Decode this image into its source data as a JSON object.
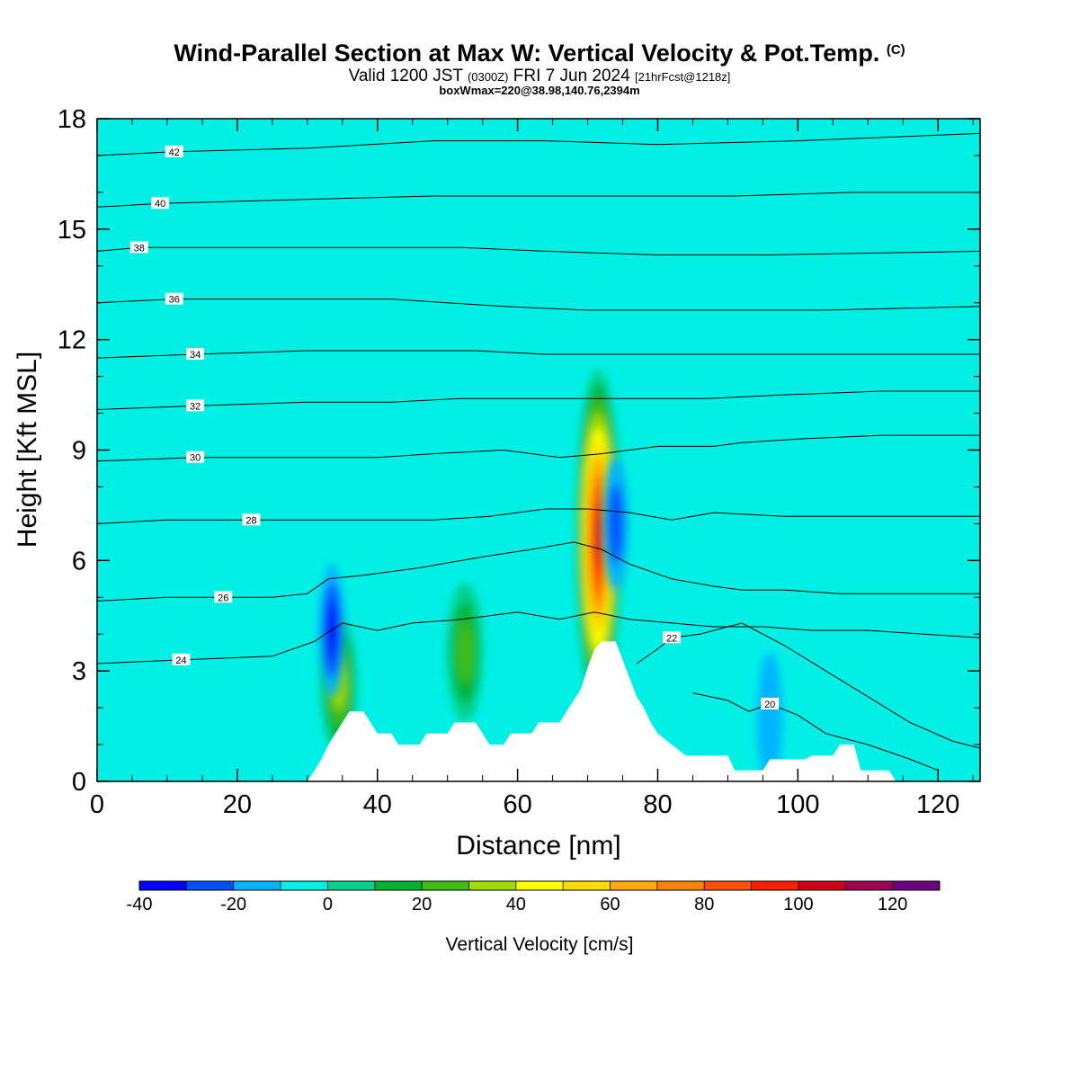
{
  "header": {
    "title_main": "Wind-Parallel Section at Max W: Vertical Velocity & Pot.Temp.",
    "title_mark": "(C)",
    "valid_prefix": "Valid 1200 JST",
    "valid_utc": "(0300Z)",
    "valid_date": "FRI 7 Jun 2024",
    "valid_fcst": "[21hrFcst@1218z]",
    "boxline": "boxWmax=220@38.98,140.76,2394m"
  },
  "chart_data": {
    "type": "heatmap",
    "title": "Wind-Parallel Section at Max W: Vertical Velocity & Pot.Temp.",
    "xlabel": "Distance [nm]",
    "ylabel": "Height [Kft MSL]",
    "xlim": [
      0,
      126
    ],
    "ylim": [
      0,
      18
    ],
    "x_ticks": [
      0,
      20,
      40,
      60,
      80,
      100,
      120
    ],
    "y_ticks": [
      0,
      3,
      6,
      9,
      12,
      15,
      18
    ],
    "colorbar": {
      "label": "Vertical Velocity [cm/s]",
      "ticks": [
        -40,
        -20,
        0,
        20,
        40,
        60,
        80,
        100,
        120
      ],
      "levels": [
        -40,
        -30,
        -20,
        -10,
        0,
        10,
        20,
        30,
        40,
        50,
        60,
        70,
        80,
        90,
        100,
        110,
        120,
        130
      ],
      "colors": [
        "#0000ff",
        "#0050ff",
        "#00b4ff",
        "#00f0e6",
        "#00d28c",
        "#00b432",
        "#3cbe14",
        "#a0dc00",
        "#ffff00",
        "#ffdc00",
        "#ffaa00",
        "#ff8200",
        "#ff5000",
        "#ff1e00",
        "#d20014",
        "#a00050",
        "#6e0082"
      ]
    },
    "terrain_kft": [
      [
        0,
        0
      ],
      [
        30,
        0
      ],
      [
        31,
        0.3
      ],
      [
        32,
        0.6
      ],
      [
        33,
        1.0
      ],
      [
        34,
        1.3
      ],
      [
        35,
        1.6
      ],
      [
        36,
        1.9
      ],
      [
        38,
        1.9
      ],
      [
        39,
        1.6
      ],
      [
        40,
        1.3
      ],
      [
        42,
        1.3
      ],
      [
        43,
        1.0
      ],
      [
        46,
        1.0
      ],
      [
        47,
        1.3
      ],
      [
        50,
        1.3
      ],
      [
        51,
        1.6
      ],
      [
        54,
        1.6
      ],
      [
        55,
        1.3
      ],
      [
        56,
        1.0
      ],
      [
        58,
        1.0
      ],
      [
        59,
        1.3
      ],
      [
        62,
        1.3
      ],
      [
        63,
        1.6
      ],
      [
        66,
        1.6
      ],
      [
        67,
        1.9
      ],
      [
        68,
        2.2
      ],
      [
        69,
        2.5
      ],
      [
        70,
        3.1
      ],
      [
        71,
        3.6
      ],
      [
        72,
        3.8
      ],
      [
        74,
        3.8
      ],
      [
        75,
        3.3
      ],
      [
        76,
        2.8
      ],
      [
        77,
        2.3
      ],
      [
        78,
        2.0
      ],
      [
        79,
        1.6
      ],
      [
        80,
        1.3
      ],
      [
        82,
        1.0
      ],
      [
        84,
        0.7
      ],
      [
        90,
        0.7
      ],
      [
        91,
        0.3
      ],
      [
        95,
        0.3
      ],
      [
        96,
        0.6
      ],
      [
        101,
        0.6
      ],
      [
        102,
        0.7
      ],
      [
        105,
        0.7
      ],
      [
        106,
        1.0
      ],
      [
        108,
        1.0
      ],
      [
        109,
        0.3
      ],
      [
        113,
        0.3
      ],
      [
        114,
        0
      ],
      [
        126,
        0
      ]
    ],
    "theta_contours": [
      {
        "label": "20",
        "label_at": [
          96,
          2.1
        ],
        "points": [
          [
            85,
            2.4
          ],
          [
            90,
            2.2
          ],
          [
            93,
            1.9
          ],
          [
            96,
            2.1
          ],
          [
            100,
            1.8
          ],
          [
            104,
            1.3
          ],
          [
            110,
            1.0
          ],
          [
            116,
            0.6
          ],
          [
            120,
            0.3
          ]
        ]
      },
      {
        "label": "22",
        "label_at": [
          82,
          3.9
        ],
        "points": [
          [
            77,
            3.2
          ],
          [
            80,
            3.6
          ],
          [
            82,
            3.9
          ],
          [
            86,
            4.0
          ],
          [
            92,
            4.3
          ],
          [
            98,
            3.7
          ],
          [
            104,
            3.0
          ],
          [
            110,
            2.3
          ],
          [
            116,
            1.6
          ],
          [
            122,
            1.1
          ],
          [
            126,
            0.9
          ]
        ]
      },
      {
        "label": "24",
        "label_at": [
          12,
          3.3
        ],
        "points": [
          [
            0,
            3.2
          ],
          [
            12,
            3.3
          ],
          [
            25,
            3.4
          ],
          [
            31,
            3.8
          ],
          [
            35,
            4.3
          ],
          [
            40,
            4.1
          ],
          [
            45,
            4.3
          ],
          [
            52,
            4.4
          ],
          [
            60,
            4.6
          ],
          [
            66,
            4.4
          ],
          [
            71,
            4.6
          ],
          [
            76,
            4.4
          ],
          [
            82,
            4.3
          ],
          [
            88,
            4.2
          ],
          [
            95,
            4.2
          ],
          [
            102,
            4.1
          ],
          [
            110,
            4.1
          ],
          [
            118,
            4.0
          ],
          [
            126,
            3.9
          ]
        ]
      },
      {
        "label": "26",
        "label_at": [
          18,
          5.0
        ],
        "points": [
          [
            0,
            4.9
          ],
          [
            10,
            5.0
          ],
          [
            18,
            5.0
          ],
          [
            25,
            5.0
          ],
          [
            30,
            5.1
          ],
          [
            33,
            5.5
          ],
          [
            38,
            5.6
          ],
          [
            46,
            5.8
          ],
          [
            55,
            6.1
          ],
          [
            62,
            6.3
          ],
          [
            68,
            6.5
          ],
          [
            72,
            6.3
          ],
          [
            76,
            5.9
          ],
          [
            82,
            5.5
          ],
          [
            88,
            5.3
          ],
          [
            92,
            5.2
          ],
          [
            98,
            5.2
          ],
          [
            106,
            5.1
          ],
          [
            116,
            5.1
          ],
          [
            126,
            5.1
          ]
        ]
      },
      {
        "label": "28",
        "label_at": [
          22,
          7.1
        ],
        "points": [
          [
            0,
            7.0
          ],
          [
            10,
            7.1
          ],
          [
            22,
            7.1
          ],
          [
            34,
            7.1
          ],
          [
            42,
            7.1
          ],
          [
            48,
            7.1
          ],
          [
            56,
            7.2
          ],
          [
            64,
            7.4
          ],
          [
            70,
            7.4
          ],
          [
            76,
            7.3
          ],
          [
            82,
            7.1
          ],
          [
            88,
            7.3
          ],
          [
            98,
            7.2
          ],
          [
            110,
            7.2
          ],
          [
            126,
            7.2
          ]
        ]
      },
      {
        "label": "30",
        "label_at": [
          14,
          8.8
        ],
        "points": [
          [
            0,
            8.7
          ],
          [
            14,
            8.8
          ],
          [
            30,
            8.8
          ],
          [
            40,
            8.8
          ],
          [
            48,
            8.9
          ],
          [
            58,
            9.0
          ],
          [
            66,
            8.8
          ],
          [
            72,
            8.9
          ],
          [
            80,
            9.1
          ],
          [
            88,
            9.1
          ],
          [
            92,
            9.2
          ],
          [
            100,
            9.3
          ],
          [
            112,
            9.4
          ],
          [
            126,
            9.4
          ]
        ]
      },
      {
        "label": "32",
        "label_at": [
          14,
          10.2
        ],
        "points": [
          [
            0,
            10.1
          ],
          [
            14,
            10.2
          ],
          [
            30,
            10.3
          ],
          [
            42,
            10.3
          ],
          [
            52,
            10.4
          ],
          [
            60,
            10.4
          ],
          [
            68,
            10.4
          ],
          [
            76,
            10.4
          ],
          [
            87,
            10.4
          ],
          [
            98,
            10.5
          ],
          [
            112,
            10.6
          ],
          [
            126,
            10.6
          ]
        ]
      },
      {
        "label": "34",
        "label_at": [
          14,
          11.6
        ],
        "points": [
          [
            0,
            11.5
          ],
          [
            14,
            11.6
          ],
          [
            30,
            11.7
          ],
          [
            46,
            11.7
          ],
          [
            54,
            11.7
          ],
          [
            64,
            11.6
          ],
          [
            72,
            11.6
          ],
          [
            82,
            11.6
          ],
          [
            95,
            11.6
          ],
          [
            110,
            11.6
          ],
          [
            126,
            11.6
          ]
        ]
      },
      {
        "label": "36",
        "label_at": [
          11,
          13.1
        ],
        "points": [
          [
            0,
            13.0
          ],
          [
            11,
            13.1
          ],
          [
            24,
            13.1
          ],
          [
            42,
            13.1
          ],
          [
            58,
            12.9
          ],
          [
            70,
            12.8
          ],
          [
            88,
            12.8
          ],
          [
            104,
            12.8
          ],
          [
            126,
            12.9
          ]
        ]
      },
      {
        "label": "38",
        "label_at": [
          6,
          14.5
        ],
        "points": [
          [
            0,
            14.4
          ],
          [
            6,
            14.5
          ],
          [
            20,
            14.5
          ],
          [
            38,
            14.5
          ],
          [
            52,
            14.5
          ],
          [
            64,
            14.4
          ],
          [
            80,
            14.3
          ],
          [
            96,
            14.3
          ],
          [
            126,
            14.4
          ]
        ]
      },
      {
        "label": "40",
        "label_at": [
          9,
          15.7
        ],
        "points": [
          [
            0,
            15.6
          ],
          [
            9,
            15.7
          ],
          [
            28,
            15.8
          ],
          [
            48,
            15.9
          ],
          [
            64,
            15.9
          ],
          [
            76,
            15.9
          ],
          [
            91,
            15.9
          ],
          [
            108,
            16.0
          ],
          [
            126,
            16.0
          ]
        ]
      },
      {
        "label": "42",
        "label_at": [
          11,
          17.1
        ],
        "points": [
          [
            0,
            17.0
          ],
          [
            11,
            17.1
          ],
          [
            30,
            17.2
          ],
          [
            48,
            17.4
          ],
          [
            64,
            17.4
          ],
          [
            80,
            17.3
          ],
          [
            100,
            17.4
          ],
          [
            126,
            17.6
          ]
        ]
      }
    ],
    "w_features": [
      {
        "label": "main updraft",
        "x": 71.5,
        "y": 6.6,
        "w_max": 110
      },
      {
        "label": "updraft",
        "x": 52.5,
        "y": 3.5,
        "w_max": 35
      },
      {
        "label": "updraft",
        "x": 34.5,
        "y": 2.6,
        "w_max": 40
      },
      {
        "label": "downdraft",
        "x": 33.5,
        "y": 4.1,
        "w_min": -35
      },
      {
        "label": "downdraft",
        "x": 74.0,
        "y": 7.0,
        "w_min": -20
      },
      {
        "label": "downdraft",
        "x": 96.0,
        "y": 1.7,
        "w_min": -15
      }
    ]
  }
}
